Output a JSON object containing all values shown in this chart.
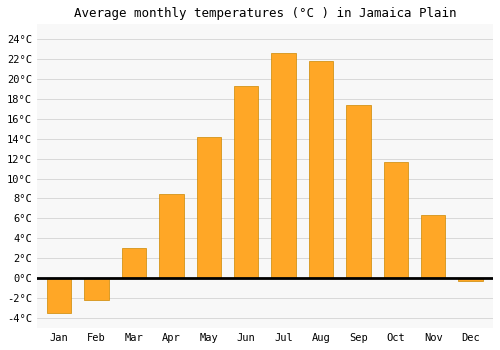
{
  "title": "Average monthly temperatures (°C ) in Jamaica Plain",
  "months": [
    "Jan",
    "Feb",
    "Mar",
    "Apr",
    "May",
    "Jun",
    "Jul",
    "Aug",
    "Sep",
    "Oct",
    "Nov",
    "Dec"
  ],
  "values": [
    -3.5,
    -2.2,
    3.0,
    8.5,
    14.2,
    19.3,
    22.6,
    21.8,
    17.4,
    11.7,
    6.3,
    -0.3
  ],
  "bar_color": "#FFA726",
  "bar_edge_color": "#CC8800",
  "background_color": "#FFFFFF",
  "plot_bg_color": "#F8F8F8",
  "grid_color": "#CCCCCC",
  "ylim": [
    -5,
    25.5
  ],
  "yticks": [
    -4,
    -2,
    0,
    2,
    4,
    6,
    8,
    10,
    12,
    14,
    16,
    18,
    20,
    22,
    24
  ],
  "zero_line_color": "#000000",
  "title_fontsize": 9,
  "tick_fontsize": 7.5,
  "font_family": "monospace"
}
